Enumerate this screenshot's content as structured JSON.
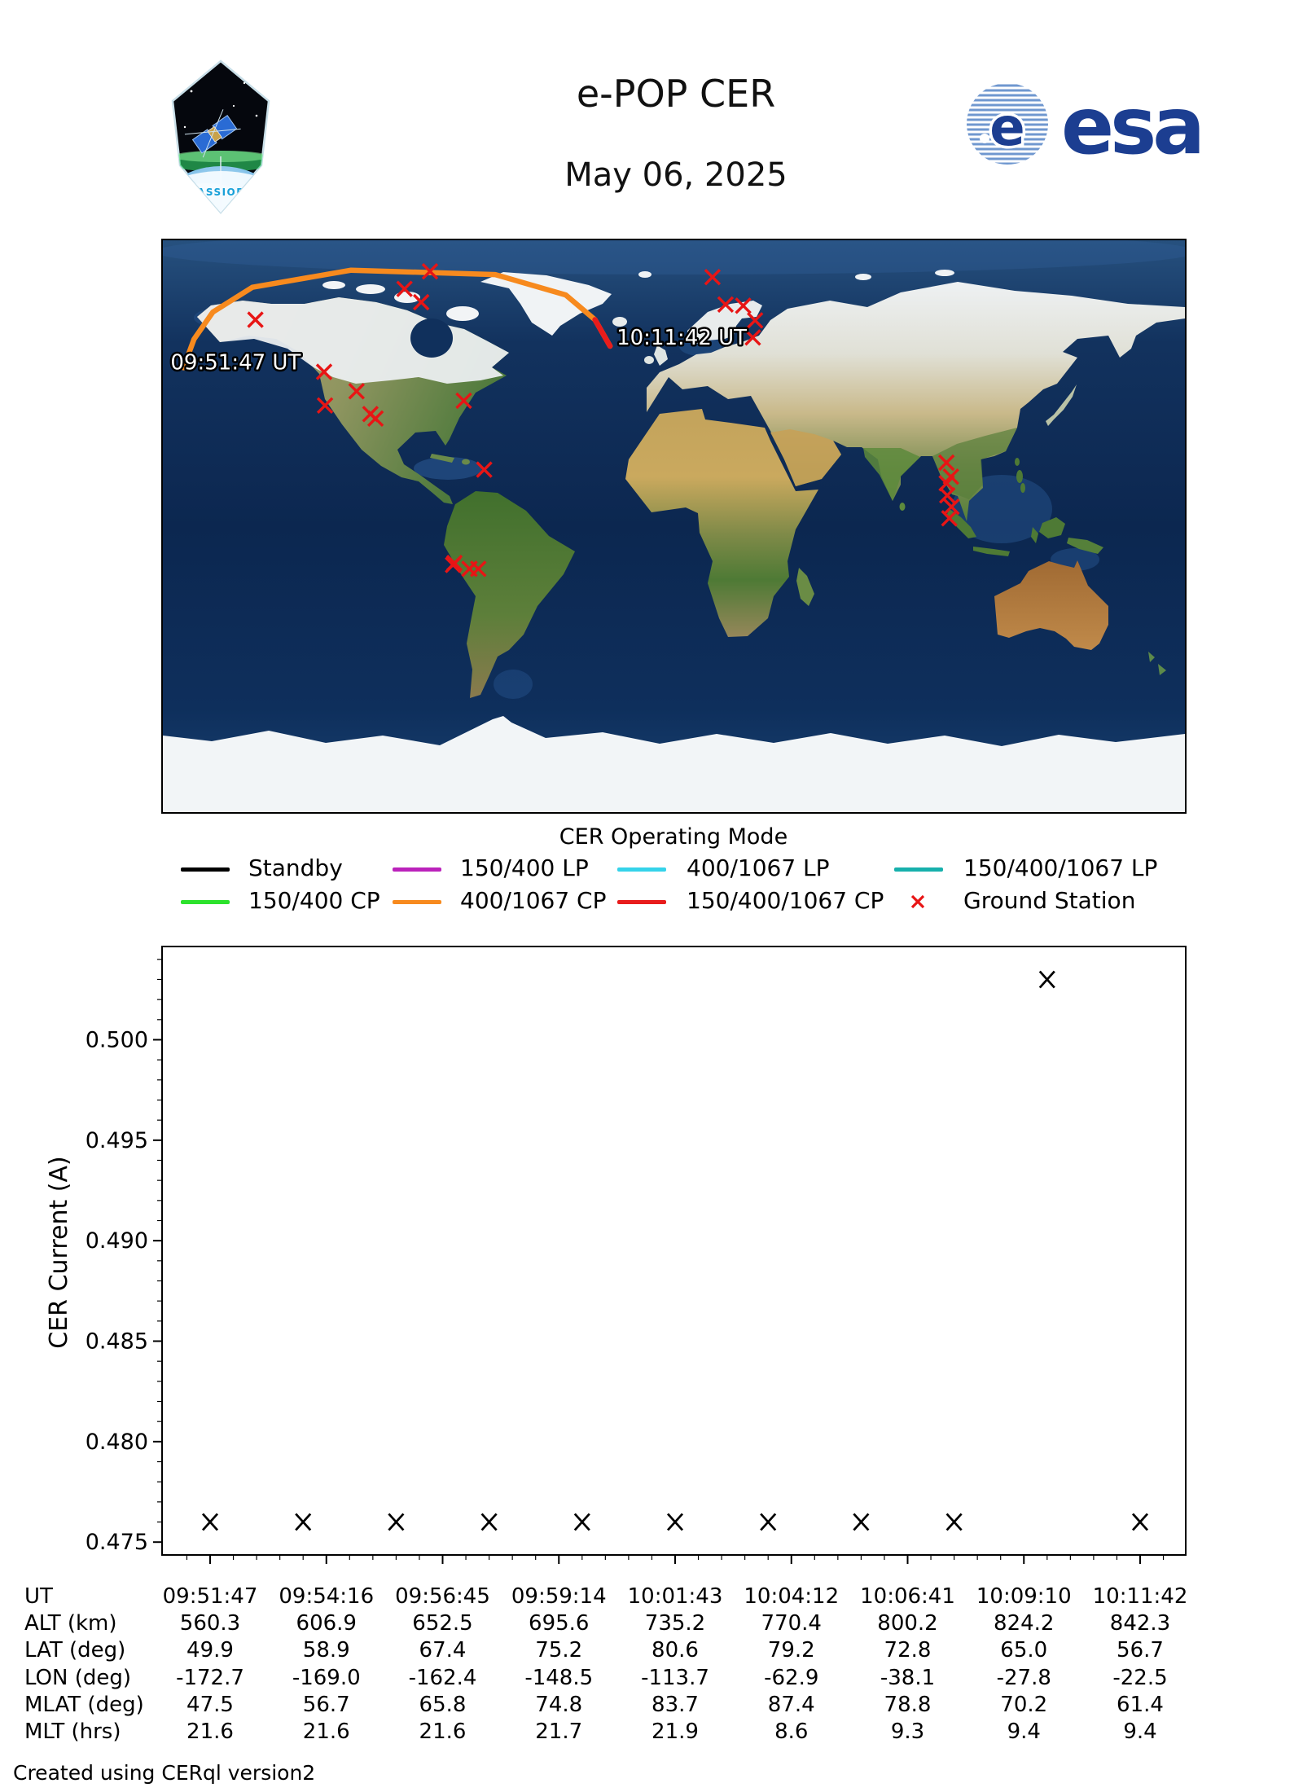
{
  "header": {
    "title": "e-POP CER",
    "date": "May 06, 2025",
    "patch_text": "CASSIOPE",
    "esa_text": "esa",
    "esa_color": "#1c3e91"
  },
  "map": {
    "projection": "equirectangular",
    "lon_range": [
      -180,
      180
    ],
    "lat_range": [
      -90,
      90
    ],
    "track_start_label": "09:51:47 UT",
    "track_end_label": "10:11:42 UT",
    "track_color_main": "#f78a1e",
    "track_color_end": "#e81c1c",
    "station_color": "#e81515",
    "track_points": [
      [
        -172.7,
        49.9
      ],
      [
        -169.0,
        58.9
      ],
      [
        -162.4,
        67.4
      ],
      [
        -148.5,
        75.2
      ],
      [
        -113.7,
        80.6
      ],
      [
        -62.9,
        79.2
      ],
      [
        -38.1,
        72.8
      ],
      [
        -27.8,
        65.0
      ],
      [
        -22.5,
        56.7
      ]
    ],
    "ground_stations": [
      [
        -147.4,
        65.0
      ],
      [
        -94.9,
        74.7
      ],
      [
        -89.0,
        70.5
      ],
      [
        -85.9,
        80.2
      ],
      [
        -123.2,
        48.6
      ],
      [
        -111.8,
        42.5
      ],
      [
        -122.9,
        38.0
      ],
      [
        -106.9,
        35.3
      ],
      [
        -105.1,
        33.9
      ],
      [
        -74.0,
        39.5
      ],
      [
        -66.8,
        17.8
      ],
      [
        -77.3,
        -11.6
      ],
      [
        -77.8,
        -12.2
      ],
      [
        -72.0,
        -13.4
      ],
      [
        -68.9,
        -13.4
      ],
      [
        13.6,
        78.4
      ],
      [
        18.2,
        69.8
      ],
      [
        24.4,
        69.4
      ],
      [
        28.6,
        64.8
      ],
      [
        27.8,
        59.4
      ],
      [
        96.0,
        20.0
      ],
      [
        97.6,
        15.6
      ],
      [
        96.1,
        13.5
      ],
      [
        96.3,
        9.7
      ],
      [
        97.8,
        6.1
      ],
      [
        97.0,
        2.5
      ]
    ]
  },
  "legend": {
    "title": "CER Operating Mode",
    "items": [
      {
        "label": "Standby",
        "color": "#000000",
        "type": "line"
      },
      {
        "label": "150/400 LP",
        "color": "#bb22bb",
        "type": "line"
      },
      {
        "label": "400/1067 LP",
        "color": "#35d3ea",
        "type": "line"
      },
      {
        "label": "150/400/1067 LP",
        "color": "#17b0ac",
        "type": "line"
      },
      {
        "label": "150/400 CP",
        "color": "#2ce22c",
        "type": "line"
      },
      {
        "label": "400/1067 CP",
        "color": "#f78a1e",
        "type": "line"
      },
      {
        "label": "150/400/1067 CP",
        "color": "#e81c1c",
        "type": "line"
      },
      {
        "label": "Ground Station",
        "color": "#e81515",
        "type": "marker"
      }
    ]
  },
  "chart_data": {
    "type": "scatter",
    "title": "",
    "xlabel": "",
    "ylabel": "CER Current (A)",
    "ylim": [
      0.4744,
      0.5046
    ],
    "yticks": [
      "0.475",
      "0.480",
      "0.485",
      "0.490",
      "0.495",
      "0.500"
    ],
    "x_tick_labels": [
      "09:51:47",
      "09:54:16",
      "09:56:45",
      "09:59:14",
      "10:01:43",
      "10:04:12",
      "10:06:41",
      "10:09:10",
      "10:11:42"
    ],
    "marker": "x",
    "marker_color": "#000000",
    "grid": false,
    "points": [
      {
        "x_frac": 0.0,
        "value": 0.476
      },
      {
        "x_frac": 0.1,
        "value": 0.476
      },
      {
        "x_frac": 0.2,
        "value": 0.476
      },
      {
        "x_frac": 0.3,
        "value": 0.476
      },
      {
        "x_frac": 0.4,
        "value": 0.476
      },
      {
        "x_frac": 0.5,
        "value": 0.476
      },
      {
        "x_frac": 0.6,
        "value": 0.476
      },
      {
        "x_frac": 0.7,
        "value": 0.476
      },
      {
        "x_frac": 0.8,
        "value": 0.476
      },
      {
        "x_frac": 0.9,
        "value": 0.503
      },
      {
        "x_frac": 1.0,
        "value": 0.476
      }
    ]
  },
  "table": {
    "rows": [
      {
        "label": "UT",
        "values": [
          "09:51:47",
          "09:54:16",
          "09:56:45",
          "09:59:14",
          "10:01:43",
          "10:04:12",
          "10:06:41",
          "10:09:10",
          "10:11:42"
        ]
      },
      {
        "label": "ALT (km)",
        "values": [
          "560.3",
          "606.9",
          "652.5",
          "695.6",
          "735.2",
          "770.4",
          "800.2",
          "824.2",
          "842.3"
        ]
      },
      {
        "label": "LAT (deg)",
        "values": [
          "49.9",
          "58.9",
          "67.4",
          "75.2",
          "80.6",
          "79.2",
          "72.8",
          "65.0",
          "56.7"
        ]
      },
      {
        "label": "LON (deg)",
        "values": [
          "-172.7",
          "-169.0",
          "-162.4",
          "-148.5",
          "-113.7",
          "-62.9",
          "-38.1",
          "-27.8",
          "-22.5"
        ]
      },
      {
        "label": "MLAT (deg)",
        "values": [
          "47.5",
          "56.7",
          "65.8",
          "74.8",
          "83.7",
          "87.4",
          "78.8",
          "70.2",
          "61.4"
        ]
      },
      {
        "label": "MLT (hrs)",
        "values": [
          "21.6",
          "21.6",
          "21.6",
          "21.7",
          "21.9",
          "8.6",
          "9.3",
          "9.4",
          "9.4"
        ]
      }
    ]
  },
  "footer": {
    "text": "Created using CERql version2"
  }
}
